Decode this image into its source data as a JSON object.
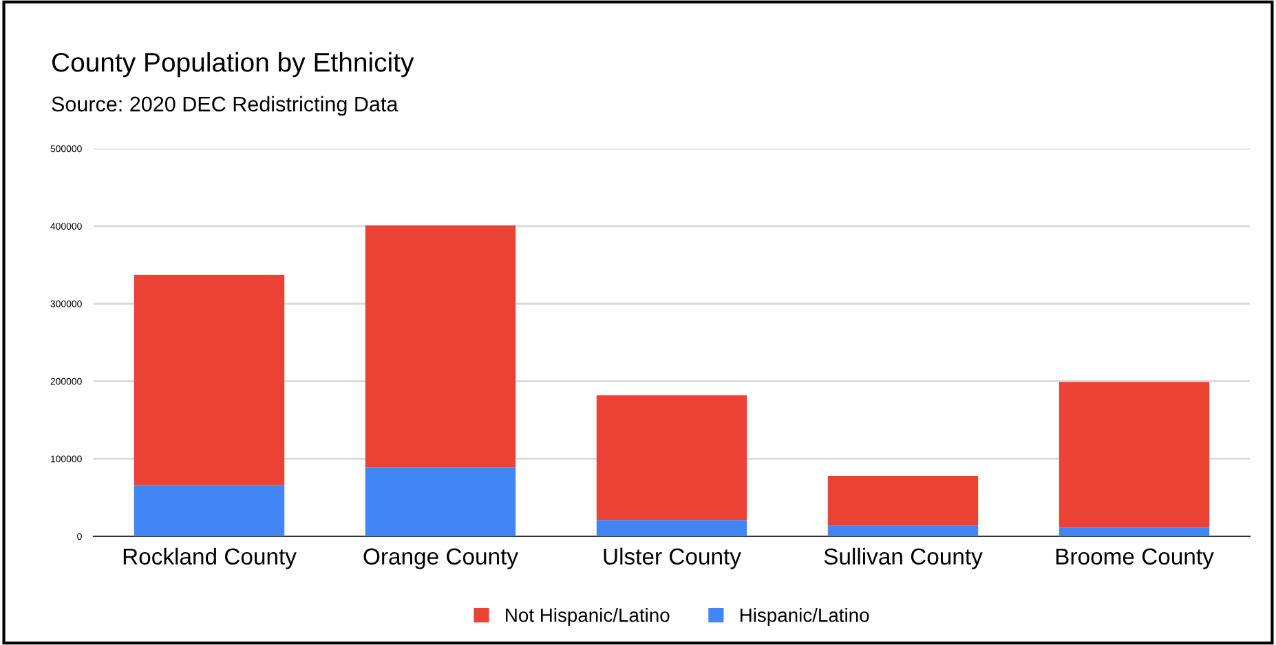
{
  "chart_data": {
    "type": "bar",
    "title": "County Population by Ethnicity",
    "subtitle": "Source: 2020 DEC Redistricting Data",
    "categories": [
      "Rockland County",
      "Orange County",
      "Ulster County",
      "Sullivan County",
      "Broome County"
    ],
    "stacked": true,
    "series": [
      {
        "name": "Hispanic/Latino",
        "color": "#4285f4",
        "values": [
          66000,
          89000,
          21000,
          14000,
          11000
        ]
      },
      {
        "name": "Not Hispanic/Latino",
        "color": "#ea4335",
        "values": [
          271000,
          312000,
          161000,
          64000,
          188000
        ]
      }
    ],
    "ylim": [
      0,
      500000
    ],
    "yticks": [
      0,
      100000,
      200000,
      300000,
      400000,
      500000
    ],
    "grid": "y",
    "legend": "bottom"
  }
}
